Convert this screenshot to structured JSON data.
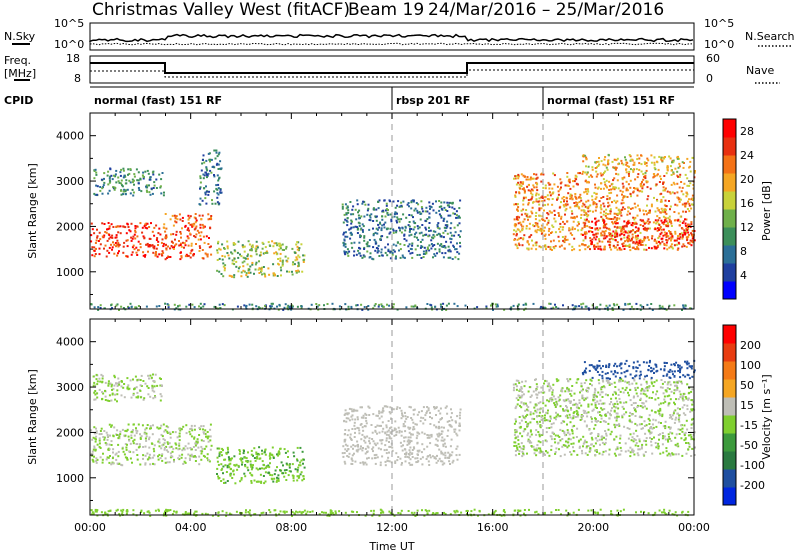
{
  "header": {
    "station": "Christmas Valley West (fitACF)",
    "beam": "Beam 19",
    "dates": "24/Mar/2016 – 25/Mar/2016"
  },
  "params": {
    "nsky_label": "N.Sky",
    "nsearch_label": "N.Search",
    "freq_label": "Freq.",
    "freq_unit": "[MHz]",
    "nave_label": "Nave",
    "cpid_label": "CPID",
    "sky_ticks": [
      "10^5",
      "10^0"
    ],
    "search_ticks": [
      "10^5",
      "10^0"
    ],
    "freq_ticks": [
      "18",
      "8"
    ],
    "nave_ticks": [
      "60",
      "0"
    ]
  },
  "cpid_segments": [
    {
      "label": "normal (fast) 151 RF",
      "start": 0,
      "end": 12
    },
    {
      "label": "rbsp 201 RF",
      "start": 12,
      "end": 18
    },
    {
      "label": "normal (fast) 151 RF",
      "start": 18,
      "end": 24
    }
  ],
  "colors": {
    "power": [
      "#0000ff",
      "#1f3f9f",
      "#2b6f97",
      "#3c8f5a",
      "#6fb04a",
      "#c8d23a",
      "#f5a623",
      "#f47216",
      "#e83010",
      "#ff0000"
    ],
    "velocity": [
      "#0026e0",
      "#1f4fa0",
      "#2a7a40",
      "#3c9a3c",
      "#7fcf2f",
      "#bebeb6",
      "#f5a623",
      "#f47a16",
      "#e83c10",
      "#ff0000"
    ],
    "ground_scatter": "#bebeb6"
  },
  "chart_data": [
    {
      "type": "heatmap",
      "name": "power",
      "xlabel": "",
      "ylabel": "Slant Range [km]",
      "xlim": [
        0,
        24
      ],
      "ylim": [
        180,
        4500
      ],
      "yticks": [
        "1000",
        "2000",
        "3000",
        "4000"
      ],
      "colorbar_label": "Power [dB]",
      "colorbar_ticks": [
        "4",
        "8",
        "12",
        "16",
        "20",
        "24",
        "28"
      ],
      "colorbar_range": [
        0,
        30
      ],
      "dashed_lines": [
        12,
        18
      ],
      "regions": [
        {
          "x": [
            0,
            2.9
          ],
          "y": [
            1350,
            2100
          ],
          "value": 26
        },
        {
          "x": [
            2.9,
            4.8
          ],
          "y": [
            1300,
            2300
          ],
          "value": 24
        },
        {
          "x": [
            5.0,
            8.5
          ],
          "y": [
            900,
            1700
          ],
          "value": 15
        },
        {
          "x": [
            0.1,
            2.9
          ],
          "y": [
            2700,
            3300
          ],
          "value": 10
        },
        {
          "x": [
            4.3,
            5.2
          ],
          "y": [
            2500,
            3700
          ],
          "value": 8
        },
        {
          "x": [
            10.0,
            14.7
          ],
          "y": [
            1300,
            2600
          ],
          "value": 8
        },
        {
          "x": [
            16.8,
            24
          ],
          "y": [
            1500,
            3200
          ],
          "value": 21
        },
        {
          "x": [
            19.5,
            24
          ],
          "y": [
            1500,
            2200
          ],
          "value": 26
        },
        {
          "x": [
            19.5,
            24
          ],
          "y": [
            3200,
            3600
          ],
          "value": 18
        },
        {
          "x": [
            0,
            24
          ],
          "y": [
            180,
            320
          ],
          "value": 10
        }
      ]
    },
    {
      "type": "heatmap",
      "name": "velocity",
      "xlabel": "Time UT",
      "ylabel": "Slant Range [km]",
      "xlim": [
        0,
        24
      ],
      "ylim": [
        180,
        4500
      ],
      "xticks": [
        "00:00",
        "04:00",
        "08:00",
        "12:00",
        "16:00",
        "20:00",
        "00:00"
      ],
      "yticks": [
        "1000",
        "2000",
        "3000",
        "4000"
      ],
      "colorbar_label": "Velocity [m s⁻¹]",
      "colorbar_ticks": [
        "200",
        "100",
        "50",
        "15",
        "-15",
        "-50",
        "-100",
        "-200"
      ],
      "colorbar_range": [
        -250,
        250
      ],
      "dashed_lines": [
        12,
        18
      ],
      "regions": [
        {
          "x": [
            0,
            4.8
          ],
          "y": [
            1300,
            2200
          ],
          "value": 0
        },
        {
          "x": [
            0.1,
            2.9
          ],
          "y": [
            2700,
            3300
          ],
          "value": 0
        },
        {
          "x": [
            5.0,
            8.5
          ],
          "y": [
            900,
            1700
          ],
          "value": -40
        },
        {
          "x": [
            10.0,
            14.7
          ],
          "y": [
            1300,
            2600
          ],
          "value": 30
        },
        {
          "x": [
            16.8,
            24
          ],
          "y": [
            1500,
            3200
          ],
          "value": 0
        },
        {
          "x": [
            19.5,
            24
          ],
          "y": [
            3200,
            3600
          ],
          "value": -180
        },
        {
          "x": [
            0,
            24
          ],
          "y": [
            180,
            320
          ],
          "value": -30
        }
      ]
    }
  ]
}
